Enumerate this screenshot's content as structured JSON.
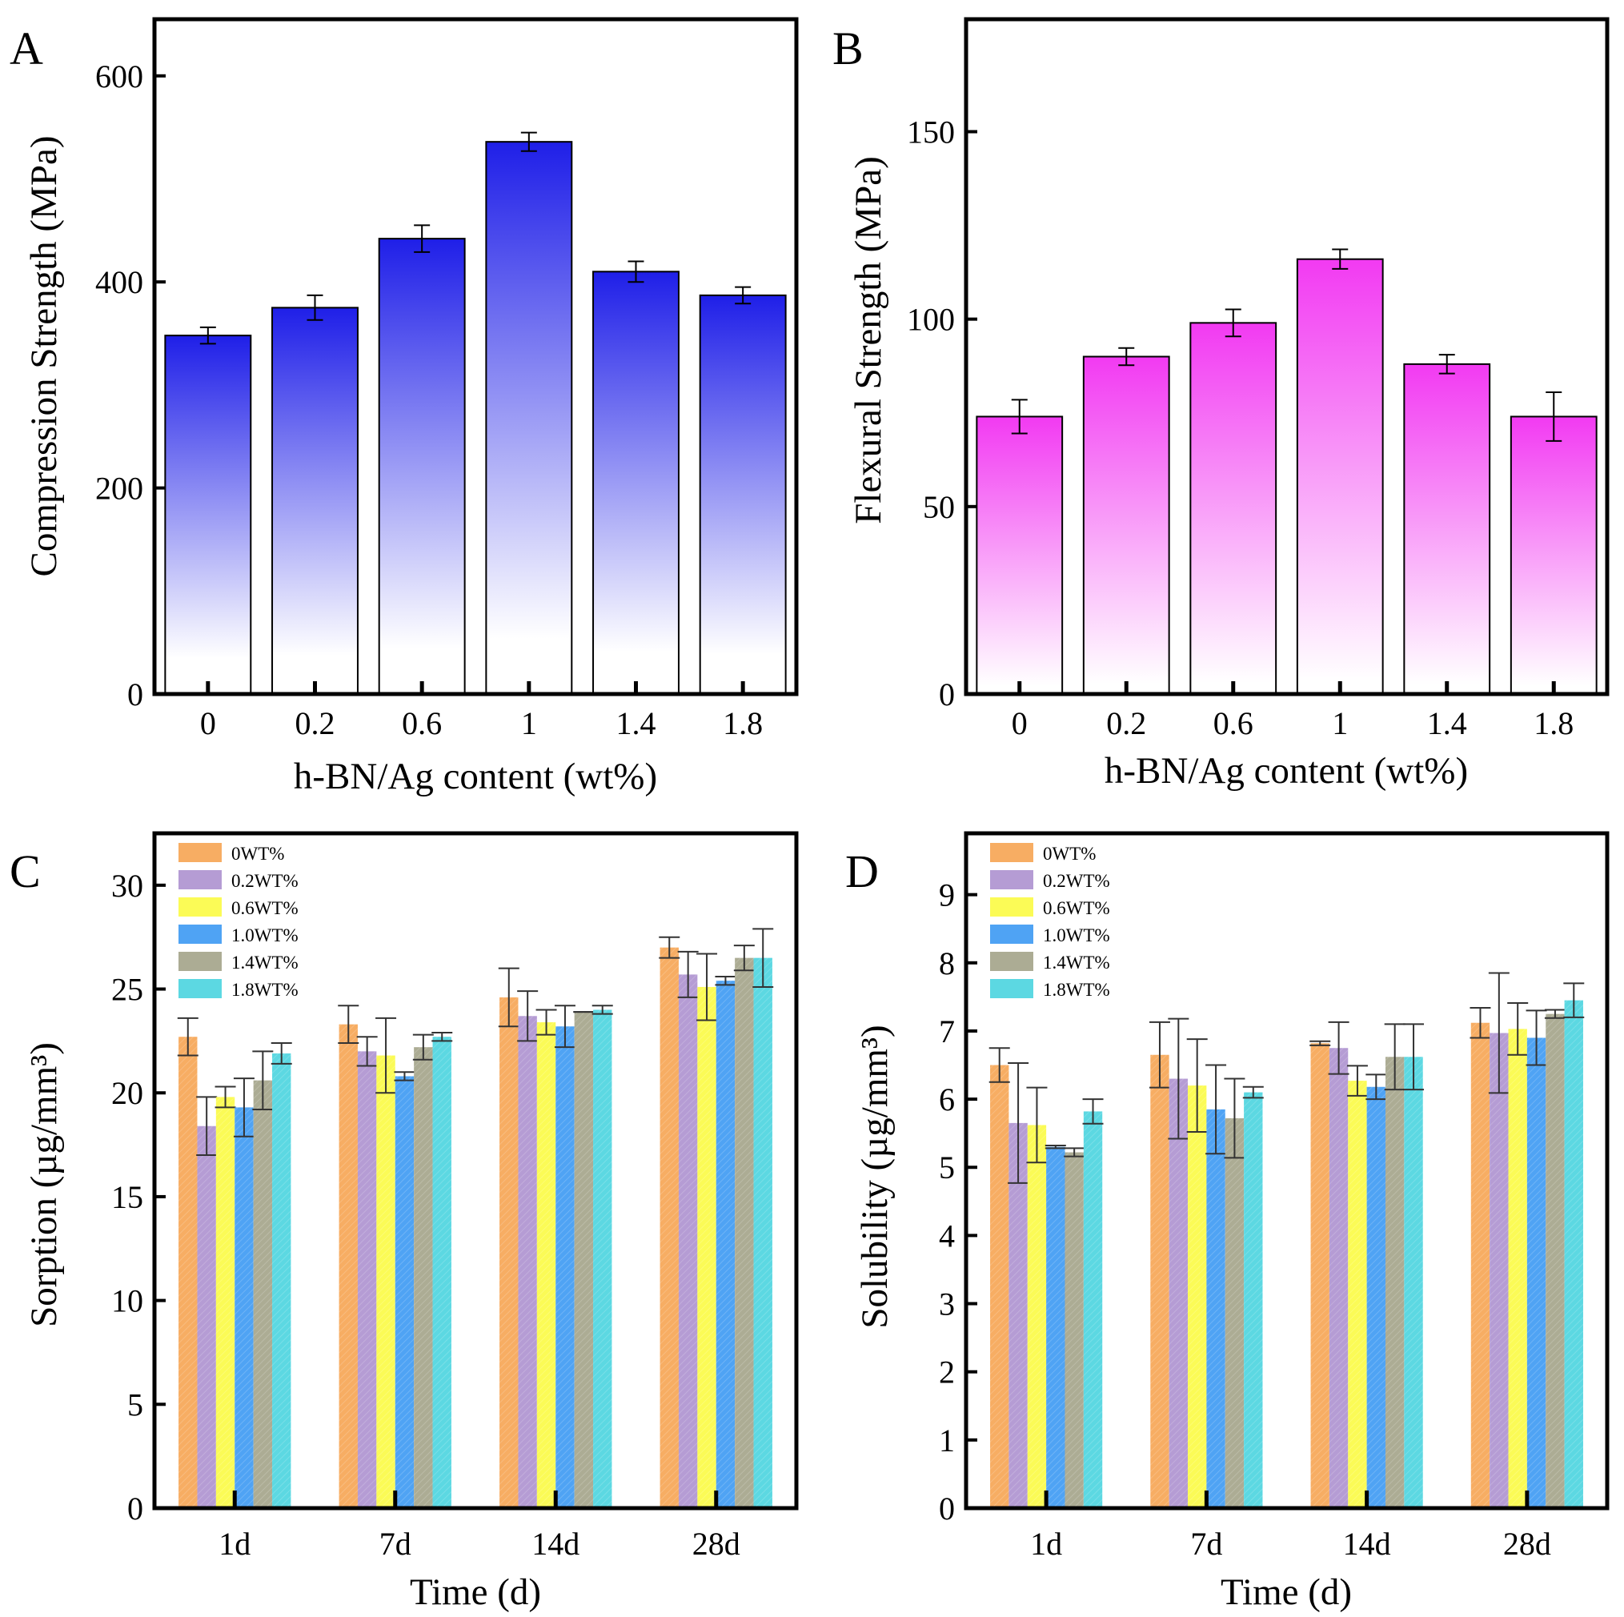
{
  "figure": {
    "panels": [
      "A",
      "B",
      "C",
      "D"
    ]
  },
  "colors": {
    "panel_a_top": "#1f1fe8",
    "panel_b_top": "#f23af2",
    "groups": [
      "#f7ad63",
      "#b59cd4",
      "#fbfb56",
      "#4fa3f4",
      "#acac94",
      "#5cd8e2"
    ]
  },
  "chart_data": [
    {
      "panel": "A",
      "type": "bar",
      "categories": [
        "0",
        "0.2",
        "0.6",
        "1",
        "1.4",
        "1.8"
      ],
      "values": [
        348,
        375,
        442,
        536,
        410,
        387
      ],
      "errors": [
        8,
        12,
        13,
        9,
        10,
        8
      ],
      "ylabel": "Compression Strength (MPa)",
      "xlabel": "h-BN/Ag content (wt%)",
      "ylim": [
        0,
        655
      ],
      "yticks": [
        0,
        200,
        400,
        600
      ],
      "ytick_labels": [
        "0",
        "200",
        "400",
        "600"
      ]
    },
    {
      "panel": "B",
      "type": "bar",
      "categories": [
        "0",
        "0.2",
        "0.6",
        "1",
        "1.4",
        "1.8"
      ],
      "values": [
        74,
        90,
        99,
        116,
        88,
        74
      ],
      "errors": [
        4.5,
        2.3,
        3.6,
        2.6,
        2.5,
        6.5
      ],
      "ylabel": "Flexural Strength (MPa)",
      "xlabel": "h-BN/Ag content (wt%)",
      "ylim": [
        0,
        180
      ],
      "yticks": [
        0,
        50,
        100,
        150
      ],
      "ytick_labels": [
        "0",
        "50",
        "100",
        "150"
      ]
    },
    {
      "panel": "C",
      "type": "bar",
      "categories": [
        "1d",
        "7d",
        "14d",
        "28d"
      ],
      "series": [
        {
          "name": "0WT%",
          "values": [
            22.7,
            23.3,
            24.6,
            27.0
          ],
          "errors": [
            0.9,
            0.9,
            1.4,
            0.5
          ]
        },
        {
          "name": "0.2WT%",
          "values": [
            18.4,
            22.0,
            23.7,
            25.7
          ],
          "errors": [
            1.4,
            0.7,
            1.2,
            1.1
          ]
        },
        {
          "name": "0.6WT%",
          "values": [
            19.8,
            21.8,
            23.4,
            25.1
          ],
          "errors": [
            0.5,
            1.8,
            0.6,
            1.6
          ]
        },
        {
          "name": "1.0WT%",
          "values": [
            19.3,
            20.8,
            23.2,
            25.4
          ],
          "errors": [
            1.4,
            0.2,
            1.0,
            0.2
          ]
        },
        {
          "name": "1.4WT%",
          "values": [
            20.6,
            22.2,
            23.9,
            26.5
          ],
          "errors": [
            1.4,
            0.6,
            0.0,
            0.6
          ]
        },
        {
          "name": "1.8WT%",
          "values": [
            21.9,
            22.7,
            24.0,
            26.5
          ],
          "errors": [
            0.5,
            0.2,
            0.2,
            1.4
          ]
        }
      ],
      "ylabel": "Sorption (µg/mm³)",
      "xlabel": "Time (d)",
      "ylim": [
        0,
        32.5
      ],
      "yticks": [
        0,
        5,
        10,
        15,
        20,
        25,
        30
      ],
      "ytick_labels": [
        "0",
        "5",
        "10",
        "15",
        "20",
        "25",
        "30"
      ]
    },
    {
      "panel": "D",
      "type": "bar",
      "categories": [
        "1d",
        "7d",
        "14d",
        "28d"
      ],
      "series": [
        {
          "name": "0WT%",
          "values": [
            6.5,
            6.65,
            6.82,
            7.12
          ],
          "errors": [
            0.25,
            0.48,
            0.03,
            0.22
          ]
        },
        {
          "name": "0.2WT%",
          "values": [
            5.65,
            6.3,
            6.75,
            6.97
          ],
          "errors": [
            0.88,
            0.88,
            0.38,
            0.88
          ]
        },
        {
          "name": "0.6WT%",
          "values": [
            5.62,
            6.2,
            6.27,
            7.03
          ],
          "errors": [
            0.55,
            0.68,
            0.22,
            0.38
          ]
        },
        {
          "name": "1.0WT%",
          "values": [
            5.3,
            5.85,
            6.18,
            6.9
          ],
          "errors": [
            0.02,
            0.65,
            0.18,
            0.4
          ]
        },
        {
          "name": "1.4WT%",
          "values": [
            5.22,
            5.72,
            6.62,
            7.25
          ],
          "errors": [
            0.06,
            0.58,
            0.48,
            0.06
          ]
        },
        {
          "name": "1.8WT%",
          "values": [
            5.82,
            6.1,
            6.62,
            7.45
          ],
          "errors": [
            0.18,
            0.08,
            0.48,
            0.25
          ]
        }
      ],
      "ylabel": "Solubility (µg/mm³)",
      "xlabel": "Time (d)",
      "ylim": [
        0,
        9.9
      ],
      "yticks": [
        0,
        1,
        2,
        3,
        4,
        5,
        6,
        7,
        8,
        9
      ],
      "ytick_labels": [
        "0",
        "1",
        "2",
        "3",
        "4",
        "5",
        "6",
        "7",
        "8",
        "9"
      ]
    }
  ]
}
